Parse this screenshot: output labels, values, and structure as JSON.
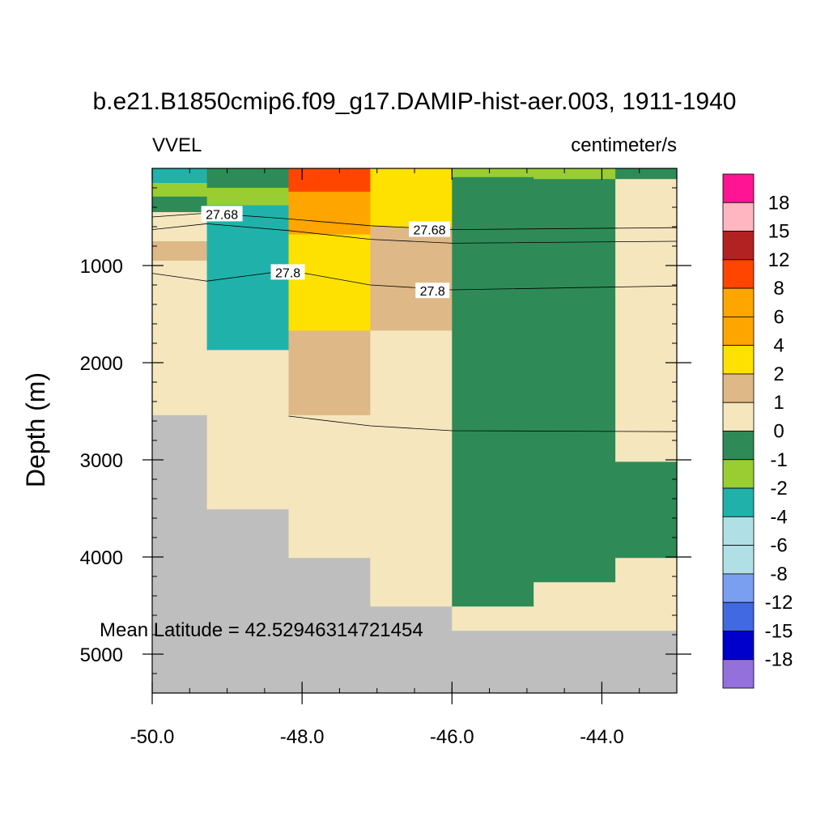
{
  "chart_data": {
    "type": "heatmap",
    "title": "b.e21.B1850cmip6.f09_g17.DAMIP-hist-aer.003, 1911-1940",
    "left_label": "VVEL",
    "right_label": "centimeter/s",
    "ylabel": "Depth (m)",
    "annotation": "Mean Latitude = 42.52946314721454",
    "xlim": [
      -50.0,
      -43.0
    ],
    "ylim": [
      5400,
      0
    ],
    "x_ticks": [
      -50.0,
      -48.0,
      -46.0,
      -44.0
    ],
    "x_tick_labels": [
      "-50.0",
      "-48.0",
      "-46.0",
      "-44.0"
    ],
    "y_ticks": [
      1000,
      2000,
      3000,
      4000,
      5000
    ],
    "y_tick_labels": [
      "1000",
      "2000",
      "3000",
      "4000",
      "5000"
    ],
    "colors": {
      "land": "#bebebe",
      "pos_18": "#ff1493",
      "pos_15": "#ffb6c1",
      "pos_12": "#b22222",
      "pos_8": "#ff4500",
      "pos_6": "#ffa500",
      "pos_4": "#ffa500",
      "pos_2": "#ffe100",
      "pos_1": "#deb887",
      "pos_0": "#f5e6be",
      "neg_1": "#2e8b57",
      "neg_2": "#9acd32",
      "neg_4": "#20b2aa",
      "neg_6": "#b0e0e6",
      "neg_8": "#b0e0e6",
      "neg_12": "#7b9ff0",
      "neg_15": "#4169e1",
      "neg_18": "#0000cd",
      "neg_inf": "#9370db"
    },
    "colorbar": {
      "labels": [
        "18",
        "15",
        "12",
        "8",
        "6",
        "4",
        "2",
        "1",
        "0",
        "-1",
        "-2",
        "-4",
        "-6",
        "-8",
        "-12",
        "-15",
        "-18"
      ],
      "box_colors": [
        "#ff1493",
        "#ffb6c1",
        "#b22222",
        "#ff4500",
        "#ffa500",
        "#ffa500",
        "#ffe100",
        "#deb887",
        "#f5e6be",
        "#2e8b57",
        "#9acd32",
        "#20b2aa",
        "#b0e0e6",
        "#b0e0e6",
        "#7b9ff0",
        "#4169e1",
        "#0000cd",
        "#9370db"
      ]
    },
    "cells": [
      {
        "x0": -50.0,
        "x1": -49.27,
        "y0": 0,
        "y1": 150,
        "c": "#20b2aa"
      },
      {
        "x0": -50.0,
        "x1": -49.27,
        "y0": 150,
        "y1": 290,
        "c": "#9acd32"
      },
      {
        "x0": -50.0,
        "x1": -49.27,
        "y0": 290,
        "y1": 450,
        "c": "#2e8b57"
      },
      {
        "x0": -50.0,
        "x1": -49.27,
        "y0": 450,
        "y1": 750,
        "c": "#f5e6be"
      },
      {
        "x0": -50.0,
        "x1": -49.27,
        "y0": 750,
        "y1": 950,
        "c": "#deb887"
      },
      {
        "x0": -50.0,
        "x1": -49.27,
        "y0": 950,
        "y1": 2540,
        "c": "#f5e6be"
      },
      {
        "x0": -50.0,
        "x1": -49.27,
        "y0": 2540,
        "y1": 5400,
        "c": "#bebebe"
      },
      {
        "x0": -49.27,
        "x1": -48.18,
        "y0": 0,
        "y1": 200,
        "c": "#2e8b57"
      },
      {
        "x0": -49.27,
        "x1": -48.18,
        "y0": 200,
        "y1": 380,
        "c": "#9acd32"
      },
      {
        "x0": -49.27,
        "x1": -48.18,
        "y0": 380,
        "y1": 1870,
        "c": "#20b2aa"
      },
      {
        "x0": -49.27,
        "x1": -48.18,
        "y0": 1870,
        "y1": 3510,
        "c": "#f5e6be"
      },
      {
        "x0": -49.27,
        "x1": -48.18,
        "y0": 3510,
        "y1": 5400,
        "c": "#bebebe"
      },
      {
        "x0": -48.18,
        "x1": -47.09,
        "y0": 0,
        "y1": 240,
        "c": "#ff4500"
      },
      {
        "x0": -48.18,
        "x1": -47.09,
        "y0": 240,
        "y1": 680,
        "c": "#ffa500"
      },
      {
        "x0": -48.18,
        "x1": -47.09,
        "y0": 680,
        "y1": 1670,
        "c": "#ffe100"
      },
      {
        "x0": -48.18,
        "x1": -47.09,
        "y0": 1670,
        "y1": 2540,
        "c": "#deb887"
      },
      {
        "x0": -48.18,
        "x1": -47.09,
        "y0": 2540,
        "y1": 4010,
        "c": "#f5e6be"
      },
      {
        "x0": -48.18,
        "x1": -47.09,
        "y0": 4010,
        "y1": 5400,
        "c": "#bebebe"
      },
      {
        "x0": -47.09,
        "x1": -46.0,
        "y0": 0,
        "y1": 600,
        "c": "#ffe100"
      },
      {
        "x0": -47.09,
        "x1": -46.0,
        "y0": 600,
        "y1": 1670,
        "c": "#deb887"
      },
      {
        "x0": -47.09,
        "x1": -46.0,
        "y0": 1670,
        "y1": 4510,
        "c": "#f5e6be"
      },
      {
        "x0": -47.09,
        "x1": -46.0,
        "y0": 4510,
        "y1": 5400,
        "c": "#bebebe"
      },
      {
        "x0": -46.0,
        "x1": -44.91,
        "y0": 0,
        "y1": 90,
        "c": "#9acd32"
      },
      {
        "x0": -46.0,
        "x1": -44.91,
        "y0": 90,
        "y1": 4510,
        "c": "#2e8b57"
      },
      {
        "x0": -46.0,
        "x1": -44.91,
        "y0": 4510,
        "y1": 4760,
        "c": "#f5e6be"
      },
      {
        "x0": -46.0,
        "x1": -44.91,
        "y0": 4760,
        "y1": 5400,
        "c": "#bebebe"
      },
      {
        "x0": -44.91,
        "x1": -43.82,
        "y0": 0,
        "y1": 110,
        "c": "#9acd32"
      },
      {
        "x0": -44.91,
        "x1": -43.82,
        "y0": 110,
        "y1": 4260,
        "c": "#2e8b57"
      },
      {
        "x0": -44.91,
        "x1": -43.82,
        "y0": 4260,
        "y1": 4760,
        "c": "#f5e6be"
      },
      {
        "x0": -44.91,
        "x1": -43.82,
        "y0": 4760,
        "y1": 5400,
        "c": "#bebebe"
      },
      {
        "x0": -43.82,
        "x1": -43.0,
        "y0": 0,
        "y1": 110,
        "c": "#2e8b57"
      },
      {
        "x0": -43.82,
        "x1": -43.0,
        "y0": 110,
        "y1": 3020,
        "c": "#f5e6be"
      },
      {
        "x0": -43.82,
        "x1": -43.0,
        "y0": 3020,
        "y1": 4010,
        "c": "#2e8b57"
      },
      {
        "x0": -43.82,
        "x1": -43.0,
        "y0": 4010,
        "y1": 4760,
        "c": "#f5e6be"
      },
      {
        "x0": -43.82,
        "x1": -43.0,
        "y0": 4760,
        "y1": 5400,
        "c": "#bebebe"
      }
    ],
    "contours": [
      {
        "points": [
          [
            -50.0,
            500
          ],
          [
            -49.27,
            460
          ],
          [
            -48.18,
            520
          ],
          [
            -47.09,
            590
          ],
          [
            -46.0,
            630
          ],
          [
            -43.0,
            610
          ]
        ]
      },
      {
        "points": [
          [
            -50.0,
            630
          ],
          [
            -49.27,
            570
          ],
          [
            -48.18,
            640
          ],
          [
            -47.09,
            730
          ],
          [
            -46.0,
            770
          ],
          [
            -43.0,
            750
          ]
        ]
      },
      {
        "points": [
          [
            -50.0,
            1080
          ],
          [
            -49.27,
            1160
          ],
          [
            -48.18,
            1050
          ],
          [
            -47.09,
            1200
          ],
          [
            -46.0,
            1250
          ],
          [
            -43.0,
            1210
          ]
        ]
      },
      {
        "points": [
          [
            -48.18,
            2550
          ],
          [
            -47.09,
            2650
          ],
          [
            -46.0,
            2700
          ],
          [
            -43.0,
            2710
          ]
        ]
      }
    ],
    "contour_labels": [
      {
        "text": "27.68",
        "x": -49.07,
        "y": 470
      },
      {
        "text": "27.68",
        "x": -46.3,
        "y": 630
      },
      {
        "text": "27.8",
        "x": -48.19,
        "y": 1070
      },
      {
        "text": "27.8",
        "x": -46.26,
        "y": 1260
      }
    ]
  }
}
